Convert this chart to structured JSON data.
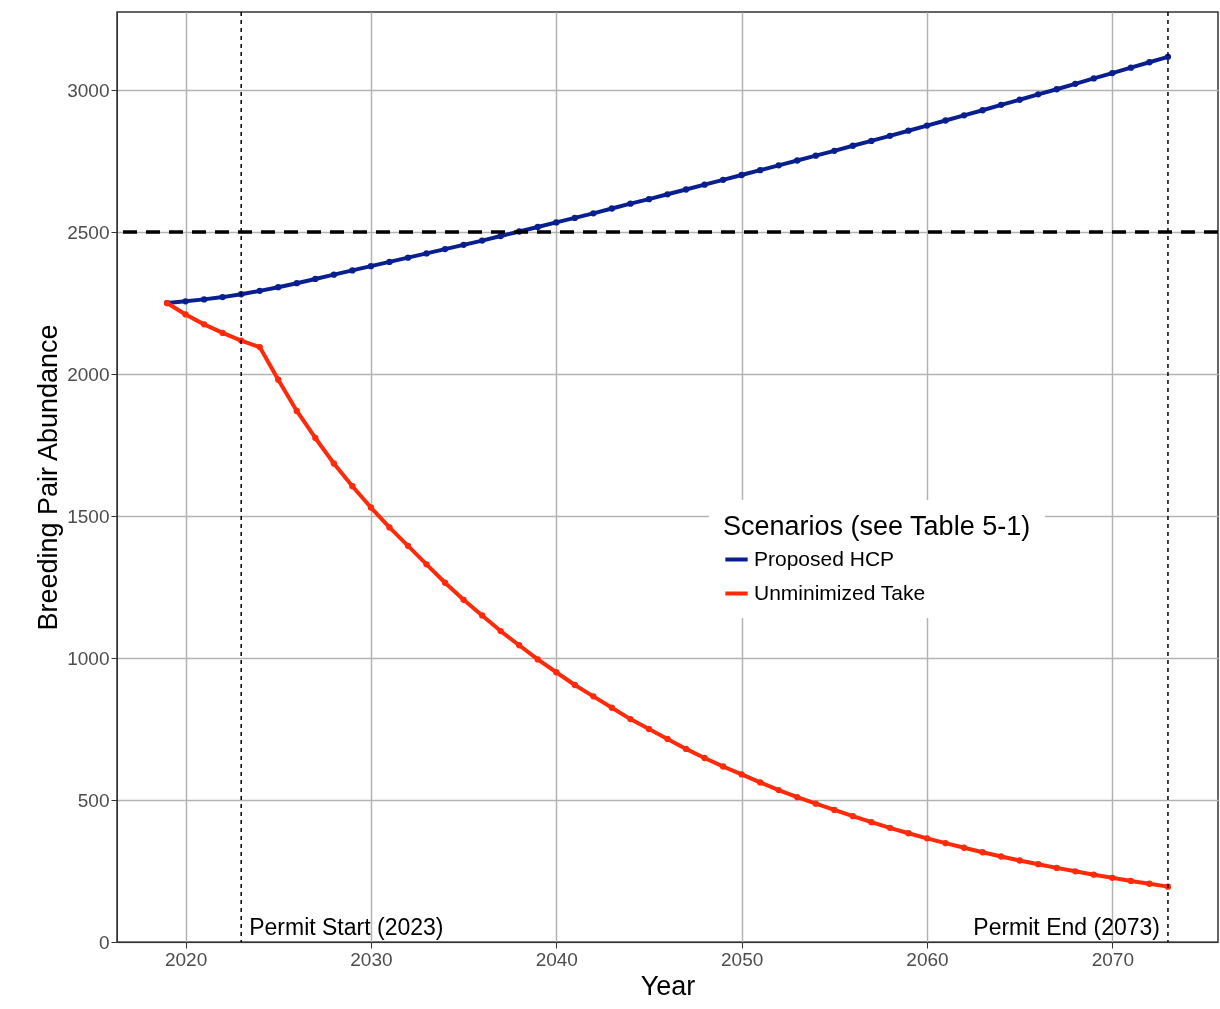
{
  "chart_data": {
    "type": "line",
    "xlabel": "Year",
    "ylabel": "Breeding Pair Abundance",
    "legend_title": "Scenarios (see Table 5-1)",
    "x": [
      2019,
      2020,
      2021,
      2022,
      2023,
      2024,
      2025,
      2026,
      2027,
      2028,
      2029,
      2030,
      2031,
      2032,
      2033,
      2034,
      2035,
      2036,
      2037,
      2038,
      2039,
      2040,
      2041,
      2042,
      2043,
      2044,
      2045,
      2046,
      2047,
      2048,
      2049,
      2050,
      2051,
      2052,
      2053,
      2054,
      2055,
      2056,
      2057,
      2058,
      2059,
      2060,
      2061,
      2062,
      2063,
      2064,
      2065,
      2066,
      2067,
      2068,
      2069,
      2070,
      2071,
      2072,
      2073
    ],
    "series": [
      {
        "name": "Proposed HCP",
        "color": "#0a1f8f",
        "values": [
          2250,
          2256,
          2263,
          2271,
          2281,
          2293,
          2306,
          2320,
          2335,
          2350,
          2365,
          2380,
          2395,
          2410,
          2425,
          2440,
          2455,
          2470,
          2486,
          2502,
          2518,
          2534,
          2550,
          2566,
          2583,
          2600,
          2616,
          2633,
          2650,
          2667,
          2684,
          2701,
          2718,
          2735,
          2752,
          2769,
          2786,
          2804,
          2821,
          2839,
          2857,
          2875,
          2893,
          2911,
          2929,
          2948,
          2966,
          2985,
          3003,
          3022,
          3041,
          3060,
          3079,
          3098,
          3117
        ]
      },
      {
        "name": "Unminimized Take",
        "color": "#ff2a0a",
        "values": [
          2250,
          2210,
          2175,
          2145,
          2118,
          2095,
          1980,
          1870,
          1775,
          1685,
          1605,
          1530,
          1460,
          1395,
          1330,
          1265,
          1205,
          1150,
          1095,
          1045,
          995,
          950,
          905,
          865,
          825,
          785,
          750,
          715,
          680,
          648,
          618,
          590,
          562,
          535,
          510,
          487,
          465,
          443,
          422,
          402,
          383,
          365,
          348,
          332,
          316,
          301,
          287,
          274,
          261,
          249,
          237,
          226,
          215,
          205,
          195
        ]
      }
    ],
    "xlim": [
      2016.3,
      2075.7
    ],
    "ylim": [
      0,
      3275
    ],
    "xticks": [
      2020,
      2030,
      2040,
      2050,
      2060,
      2070
    ],
    "yticks": [
      0,
      500,
      1000,
      1500,
      2000,
      2500,
      3000
    ],
    "ref_lines": [
      {
        "axis": "y",
        "value": 2500,
        "color": "#000000",
        "line_style": "dashed"
      },
      {
        "axis": "x",
        "value": 2023,
        "label": "Permit Start (2023)",
        "color": "#000000",
        "line_style": "dotted"
      },
      {
        "axis": "x",
        "value": 2073,
        "label": "Permit End (2073)",
        "color": "#000000",
        "line_style": "dotted"
      }
    ],
    "grid": true,
    "legend": "right",
    "marker": "circle",
    "line_style": "solid"
  }
}
